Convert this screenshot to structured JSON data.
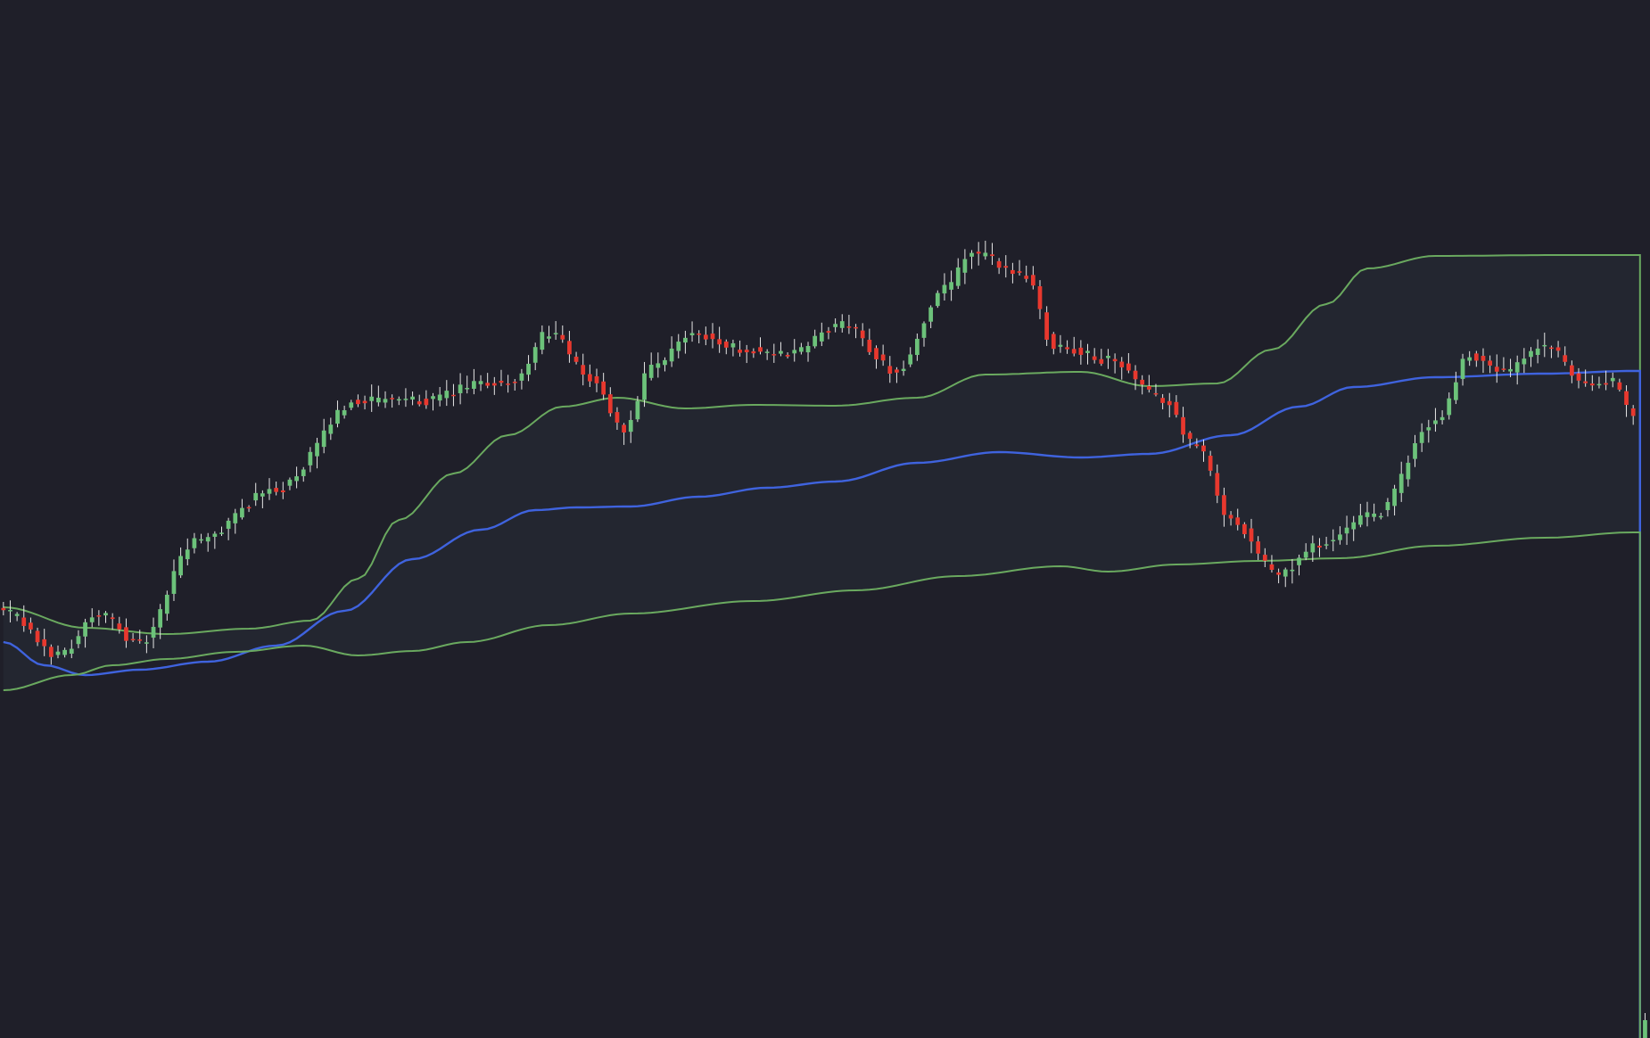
{
  "chart_data": {
    "type": "candlestick",
    "title": "",
    "xlabel": "",
    "ylabel": "",
    "grid": false,
    "ylim": [
      0,
      1164
    ],
    "colors": {
      "background": "#1f1f29",
      "up": "#6cc27a",
      "down": "#e8382e",
      "wick": "#e6e6e6",
      "band": "#6aa95f",
      "basis": "#3f63de",
      "band_fill": "#232630"
    },
    "candles": {
      "count": 240,
      "anchors": [
        [
          0,
          478
        ],
        [
          8,
          430
        ],
        [
          14,
          475
        ],
        [
          20,
          442
        ],
        [
          28,
          556
        ],
        [
          40,
          615
        ],
        [
          52,
          715
        ],
        [
          62,
          715
        ],
        [
          70,
          733
        ],
        [
          75,
          737
        ],
        [
          80,
          792
        ],
        [
          86,
          740
        ],
        [
          91,
          682
        ],
        [
          95,
          750
        ],
        [
          101,
          791
        ],
        [
          108,
          773
        ],
        [
          115,
          767
        ],
        [
          123,
          800
        ],
        [
          131,
          748
        ],
        [
          138,
          840
        ],
        [
          142,
          880
        ],
        [
          150,
          855
        ],
        [
          154,
          777
        ],
        [
          162,
          760
        ],
        [
          170,
          716
        ],
        [
          175,
          663
        ],
        [
          180,
          581
        ],
        [
          187,
          520
        ],
        [
          193,
          554
        ],
        [
          201,
          586
        ],
        [
          210,
          691
        ],
        [
          215,
          765
        ],
        [
          220,
          746
        ],
        [
          226,
          776
        ],
        [
          232,
          735
        ],
        [
          236,
          735
        ],
        [
          239,
          700
        ]
      ],
      "tail": {
        "x_fraction": 0.997,
        "close": 20,
        "low": 10
      }
    },
    "series": [
      {
        "role": "upper-band",
        "values": [
          [
            0,
            483
          ],
          [
            12,
            460
          ],
          [
            24,
            453
          ],
          [
            36,
            459
          ],
          [
            45,
            468
          ],
          [
            52,
            515
          ],
          [
            58,
            581
          ],
          [
            66,
            633
          ],
          [
            74,
            676
          ],
          [
            82,
            708
          ],
          [
            90,
            718
          ],
          [
            100,
            706
          ],
          [
            110,
            710
          ],
          [
            122,
            709
          ],
          [
            134,
            718
          ],
          [
            144,
            744
          ],
          [
            158,
            747
          ],
          [
            168,
            731
          ],
          [
            178,
            734
          ],
          [
            186,
            772
          ],
          [
            194,
            823
          ],
          [
            200,
            863
          ],
          [
            210,
            877
          ],
          [
            228,
            878
          ],
          [
            239,
            878
          ]
        ]
      },
      {
        "role": "basis",
        "values": [
          [
            0,
            444
          ],
          [
            6,
            418
          ],
          [
            12,
            407
          ],
          [
            20,
            413
          ],
          [
            30,
            422
          ],
          [
            40,
            440
          ],
          [
            50,
            479
          ],
          [
            60,
            537
          ],
          [
            70,
            570
          ],
          [
            78,
            592
          ],
          [
            84,
            595
          ],
          [
            92,
            596
          ],
          [
            102,
            607
          ],
          [
            112,
            617
          ],
          [
            122,
            624
          ],
          [
            134,
            645
          ],
          [
            146,
            657
          ],
          [
            158,
            651
          ],
          [
            168,
            655
          ],
          [
            180,
            676
          ],
          [
            190,
            708
          ],
          [
            198,
            730
          ],
          [
            210,
            741
          ],
          [
            226,
            745
          ],
          [
            239,
            748
          ]
        ]
      },
      {
        "role": "lower-band",
        "values": [
          [
            0,
            390
          ],
          [
            10,
            407
          ],
          [
            16,
            418
          ],
          [
            24,
            425
          ],
          [
            34,
            433
          ],
          [
            44,
            440
          ],
          [
            52,
            429
          ],
          [
            60,
            434
          ],
          [
            68,
            444
          ],
          [
            80,
            463
          ],
          [
            92,
            476
          ],
          [
            110,
            490
          ],
          [
            125,
            502
          ],
          [
            140,
            518
          ],
          [
            155,
            529
          ],
          [
            162,
            523
          ],
          [
            172,
            531
          ],
          [
            184,
            535
          ],
          [
            196,
            538
          ],
          [
            210,
            552
          ],
          [
            226,
            561
          ],
          [
            239,
            567
          ]
        ]
      }
    ]
  }
}
